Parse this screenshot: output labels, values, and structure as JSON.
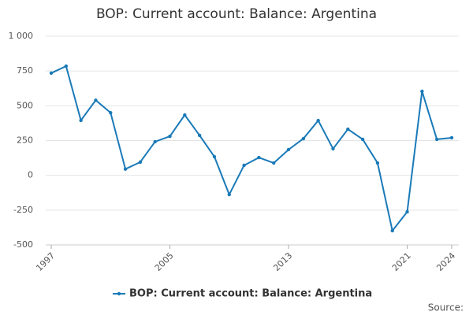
{
  "chart_data": {
    "type": "line",
    "title": "BOP: Current account: Balance: Argentina",
    "x": [
      1997,
      1998,
      1999,
      2000,
      2001,
      2002,
      2003,
      2004,
      2005,
      2006,
      2007,
      2008,
      2009,
      2010,
      2011,
      2012,
      2013,
      2014,
      2015,
      2016,
      2017,
      2018,
      2019,
      2020,
      2021,
      2022,
      2023,
      2024
    ],
    "series": [
      {
        "name": "BOP: Current account: Balance: Argentina",
        "color": "#1a7ab8",
        "values": [
          735,
          785,
          395,
          540,
          450,
          45,
          95,
          242,
          281,
          434,
          287,
          134,
          -138,
          72,
          128,
          89,
          185,
          264,
          394,
          191,
          332,
          259,
          89,
          -398,
          -262,
          604,
          259,
          270
        ]
      }
    ],
    "xlim": [
      1997,
      2024
    ],
    "xticks": [
      1997,
      2005,
      2013,
      2021,
      2024
    ],
    "ylim": [
      -500,
      1000
    ],
    "yticks": [
      -500,
      -250,
      0,
      250,
      500,
      750,
      {
        "value": 1000,
        "label": "1 000"
      }
    ],
    "grid": true,
    "legend": "bottom",
    "source": "Source:"
  }
}
